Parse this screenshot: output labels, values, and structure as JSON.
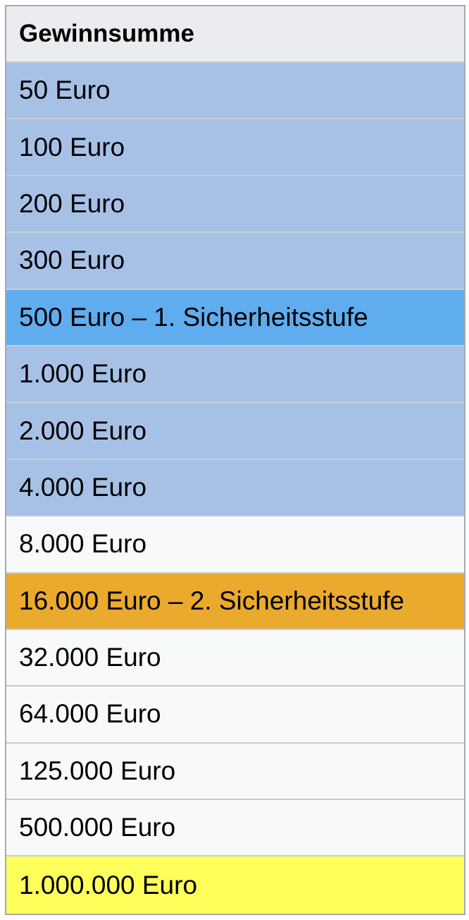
{
  "table": {
    "header": "Gewinnsumme",
    "rows": [
      {
        "label": "50 Euro",
        "level": "blue"
      },
      {
        "label": "100 Euro",
        "level": "blue"
      },
      {
        "label": "200 Euro",
        "level": "blue"
      },
      {
        "label": "300 Euro",
        "level": "blue"
      },
      {
        "label": "500 Euro – 1. Sicherheitsstufe",
        "level": "safe1"
      },
      {
        "label": "1.000 Euro",
        "level": "blue"
      },
      {
        "label": "2.000 Euro",
        "level": "blue"
      },
      {
        "label": "4.000 Euro",
        "level": "blue"
      },
      {
        "label": "8.000 Euro",
        "level": "white"
      },
      {
        "label": "16.000 Euro – 2. Sicherheitsstufe",
        "level": "safe2"
      },
      {
        "label": "32.000 Euro",
        "level": "white"
      },
      {
        "label": "64.000 Euro",
        "level": "white"
      },
      {
        "label": "125.000 Euro",
        "level": "white"
      },
      {
        "label": "500.000 Euro",
        "level": "white"
      },
      {
        "label": "1.000.000 Euro",
        "level": "top"
      }
    ]
  },
  "colors": {
    "header_bg": "#eaecf0",
    "blue_row": "#a7c1e6",
    "safety_level_1": "#5fadee",
    "white_row": "#f8f9fa",
    "safety_level_2": "#eaaa2e",
    "top_prize": "#ffff5b",
    "border": "#a2a9b1"
  }
}
